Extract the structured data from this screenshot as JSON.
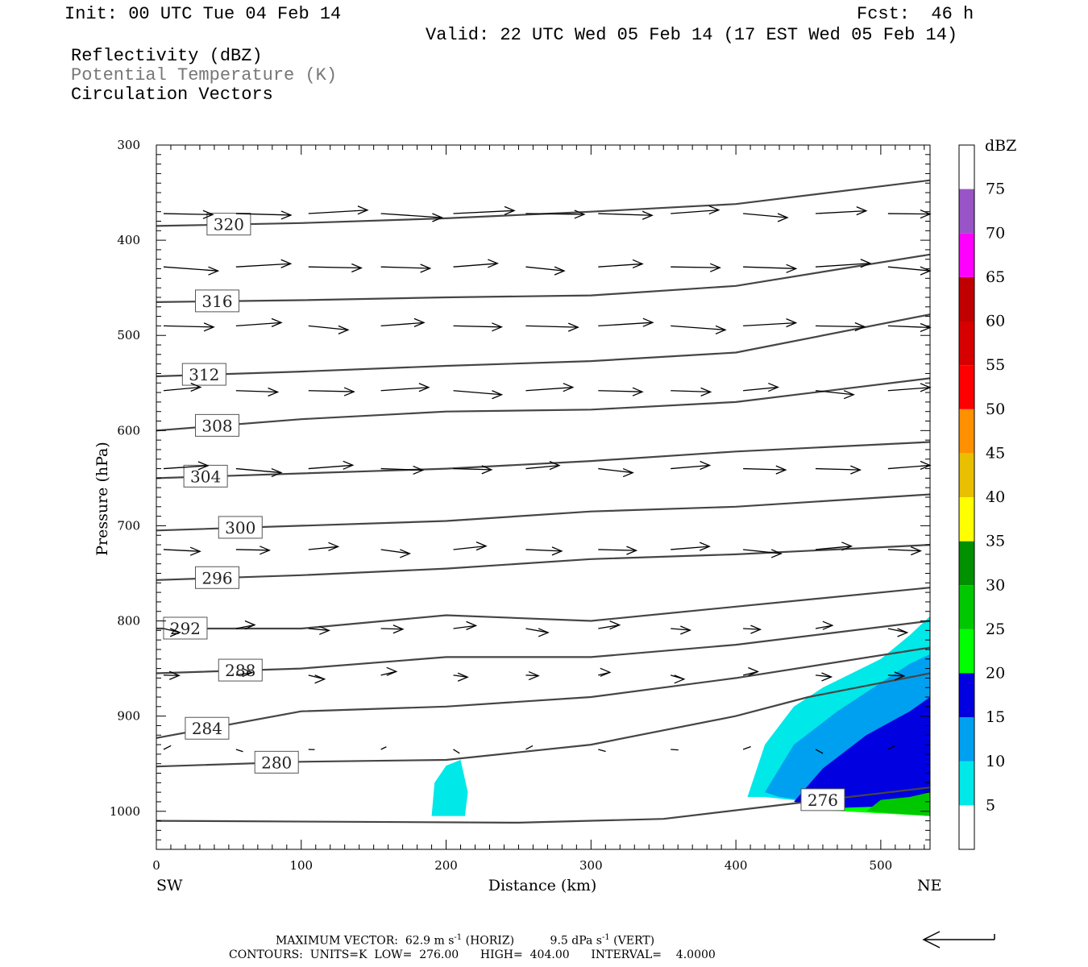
{
  "header": {
    "init": "Init: 00 UTC Tue 04 Feb 14",
    "fcst": "Fcst:  46 h",
    "valid": "Valid: 22 UTC Wed 05 Feb 14 (17 EST Wed 05 Feb 14)",
    "fields": [
      "Reflectivity (dBZ)",
      "Potential Temperature (K)",
      "Circulation Vectors"
    ]
  },
  "footer": {
    "max_vector_prefix": "MAXIMUM VECTOR:  62.9 m s",
    "max_vector_sup1": "-1",
    "max_vector_mid": " (HORIZ)          9.5 dPa s",
    "max_vector_sup2": "-1",
    "max_vector_suffix": " (VERT)",
    "contours": "CONTOURS:  UNITS=K  LOW=  276.00      HIGH=  404.00      INTERVAL=    4.0000"
  },
  "colors": {
    "contour": "#454545",
    "frame": "#000000",
    "scale": [
      "#ffffff",
      "#00e8e8",
      "#00a0f0",
      "#0000e0",
      "#00ff00",
      "#00c800",
      "#009000",
      "#ffff00",
      "#e8c000",
      "#ff9000",
      "#ff0000",
      "#d60000",
      "#c00000",
      "#ff00ff",
      "#9955c8"
    ]
  },
  "chart_data": {
    "type": "cross-section",
    "title": "Reflectivity (dBZ), Potential Temperature (K), Circulation Vectors",
    "xlabel": "Distance (km)",
    "ylabel": "Pressure (hPa)",
    "x_ticks": [
      0,
      100,
      200,
      300,
      400,
      500
    ],
    "y_ticks": [
      300,
      400,
      500,
      600,
      700,
      800,
      900,
      1000
    ],
    "xlim": [
      0,
      534
    ],
    "ylim": [
      1040,
      300
    ],
    "x_end_labels": {
      "left": "SW",
      "right": "NE"
    },
    "colorbar": {
      "label": "dBZ",
      "tick_labels": [
        "5",
        "10",
        "15",
        "20",
        "25",
        "30",
        "35",
        "40",
        "45",
        "50",
        "55",
        "60",
        "65",
        "70",
        "75"
      ]
    },
    "theta_contours": [
      {
        "level": 276,
        "label": "276",
        "x": [
          0,
          250,
          350,
          450,
          534
        ],
        "p": [
          1010,
          1012,
          1008,
          990,
          975
        ]
      },
      {
        "level": 280,
        "label": "280",
        "x": [
          0,
          100,
          200,
          300,
          400,
          450,
          534
        ],
        "p": [
          953,
          948,
          946,
          930,
          900,
          880,
          855
        ]
      },
      {
        "level": 284,
        "label": "284",
        "x": [
          0,
          100,
          200,
          300,
          400,
          534
        ],
        "p": [
          923,
          895,
          890,
          880,
          860,
          828
        ]
      },
      {
        "level": 288,
        "label": "288",
        "x": [
          0,
          100,
          200,
          300,
          400,
          534
        ],
        "p": [
          855,
          850,
          838,
          838,
          825,
          800
        ]
      },
      {
        "level": 292,
        "label": "292",
        "x": [
          0,
          100,
          200,
          300,
          400,
          534
        ],
        "p": [
          808,
          808,
          794,
          800,
          785,
          765
        ]
      },
      {
        "level": 296,
        "label": "296",
        "x": [
          0,
          100,
          200,
          300,
          400,
          534
        ],
        "p": [
          757,
          752,
          745,
          735,
          730,
          720
        ]
      },
      {
        "level": 300,
        "label": "300",
        "x": [
          0,
          100,
          200,
          300,
          400,
          534
        ],
        "p": [
          705,
          700,
          695,
          685,
          680,
          667
        ]
      },
      {
        "level": 304,
        "label": "304",
        "x": [
          0,
          100,
          200,
          300,
          400,
          534
        ],
        "p": [
          650,
          645,
          640,
          632,
          622,
          612
        ]
      },
      {
        "level": 308,
        "label": "308",
        "x": [
          0,
          100,
          200,
          300,
          400,
          534
        ],
        "p": [
          600,
          588,
          580,
          578,
          570,
          545
        ]
      },
      {
        "level": 312,
        "label": "312",
        "x": [
          0,
          100,
          200,
          300,
          400,
          534
        ],
        "p": [
          543,
          538,
          532,
          527,
          518,
          478
        ]
      },
      {
        "level": 316,
        "label": "316",
        "x": [
          0,
          100,
          200,
          300,
          400,
          534
        ],
        "p": [
          465,
          463,
          460,
          458,
          448,
          415
        ]
      },
      {
        "level": 320,
        "label": "320",
        "x": [
          0,
          100,
          200,
          300,
          400,
          534
        ],
        "p": [
          385,
          382,
          377,
          370,
          362,
          337
        ]
      }
    ],
    "reflectivity_regions": [
      {
        "dbz": 5,
        "x": [
          190,
          192,
          200,
          210,
          215,
          213,
          190
        ],
        "p": [
          1005,
          970,
          952,
          946,
          980,
          1005,
          1005
        ]
      },
      {
        "dbz": 5,
        "x": [
          408,
          420,
          440,
          460,
          480,
          500,
          520,
          534,
          534,
          480,
          420,
          408
        ],
        "p": [
          985,
          930,
          890,
          870,
          855,
          840,
          815,
          795,
          1005,
          995,
          985,
          985
        ]
      },
      {
        "dbz": 10,
        "x": [
          420,
          440,
          470,
          500,
          520,
          534,
          534,
          480,
          430,
          420
        ],
        "p": [
          980,
          930,
          895,
          865,
          845,
          835,
          1005,
          995,
          985,
          980
        ]
      },
      {
        "dbz": 15,
        "x": [
          440,
          460,
          490,
          520,
          534,
          534,
          480,
          440
        ],
        "p": [
          990,
          955,
          920,
          895,
          880,
          1005,
          998,
          990
        ]
      },
      {
        "dbz": 20,
        "x": [
          450,
          480,
          500,
          534,
          534,
          450
        ],
        "p": [
          998,
          996,
          995,
          990,
          1005,
          998
        ]
      },
      {
        "dbz": 25,
        "x": [
          490,
          500,
          520,
          534,
          534,
          490
        ],
        "p": [
          1000,
          988,
          985,
          980,
          1005,
          1000
        ]
      }
    ],
    "vector_rows_p": [
      372,
      428,
      490,
      558,
      640,
      725,
      808,
      857,
      935
    ]
  }
}
